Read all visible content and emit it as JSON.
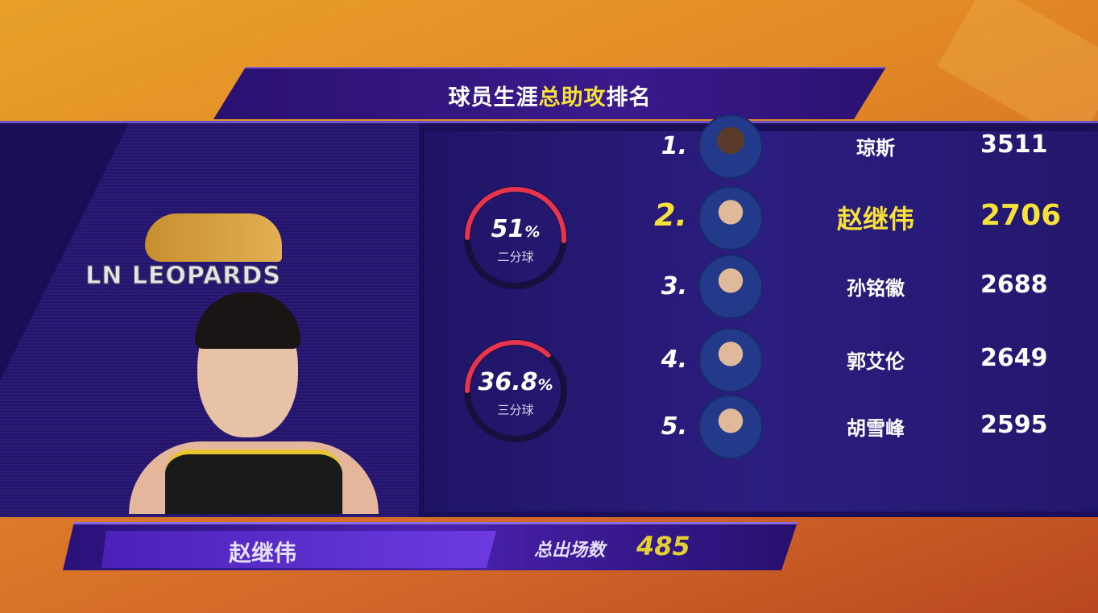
{
  "title": {
    "prefix": "球员生涯",
    "highlight": "总助攻",
    "suffix": "排名"
  },
  "team_logo": {
    "text": "LN LEOPARDS"
  },
  "shooting": [
    {
      "value": "51",
      "unit": "%",
      "label": "二分球",
      "percent": 51
    },
    {
      "value": "36.8",
      "unit": "%",
      "label": "三分球",
      "percent": 36.8
    }
  ],
  "ranking": [
    {
      "rank": "1.",
      "name": "琼斯",
      "value": "3511",
      "highlight": false
    },
    {
      "rank": "2.",
      "name": "赵继伟",
      "value": "2706",
      "highlight": true
    },
    {
      "rank": "3.",
      "name": "孙铭徽",
      "value": "2688",
      "highlight": false
    },
    {
      "rank": "4.",
      "name": "郭艾伦",
      "value": "2649",
      "highlight": false
    },
    {
      "rank": "5.",
      "name": "胡雪峰",
      "value": "2595",
      "highlight": false
    }
  ],
  "player": {
    "name": "赵继伟",
    "games_label": "总出场数",
    "games": "485"
  },
  "colors": {
    "accent": "#f6e03a",
    "arc": "#e8344e",
    "panel": "#1a0e56",
    "background": "#e28a25"
  }
}
